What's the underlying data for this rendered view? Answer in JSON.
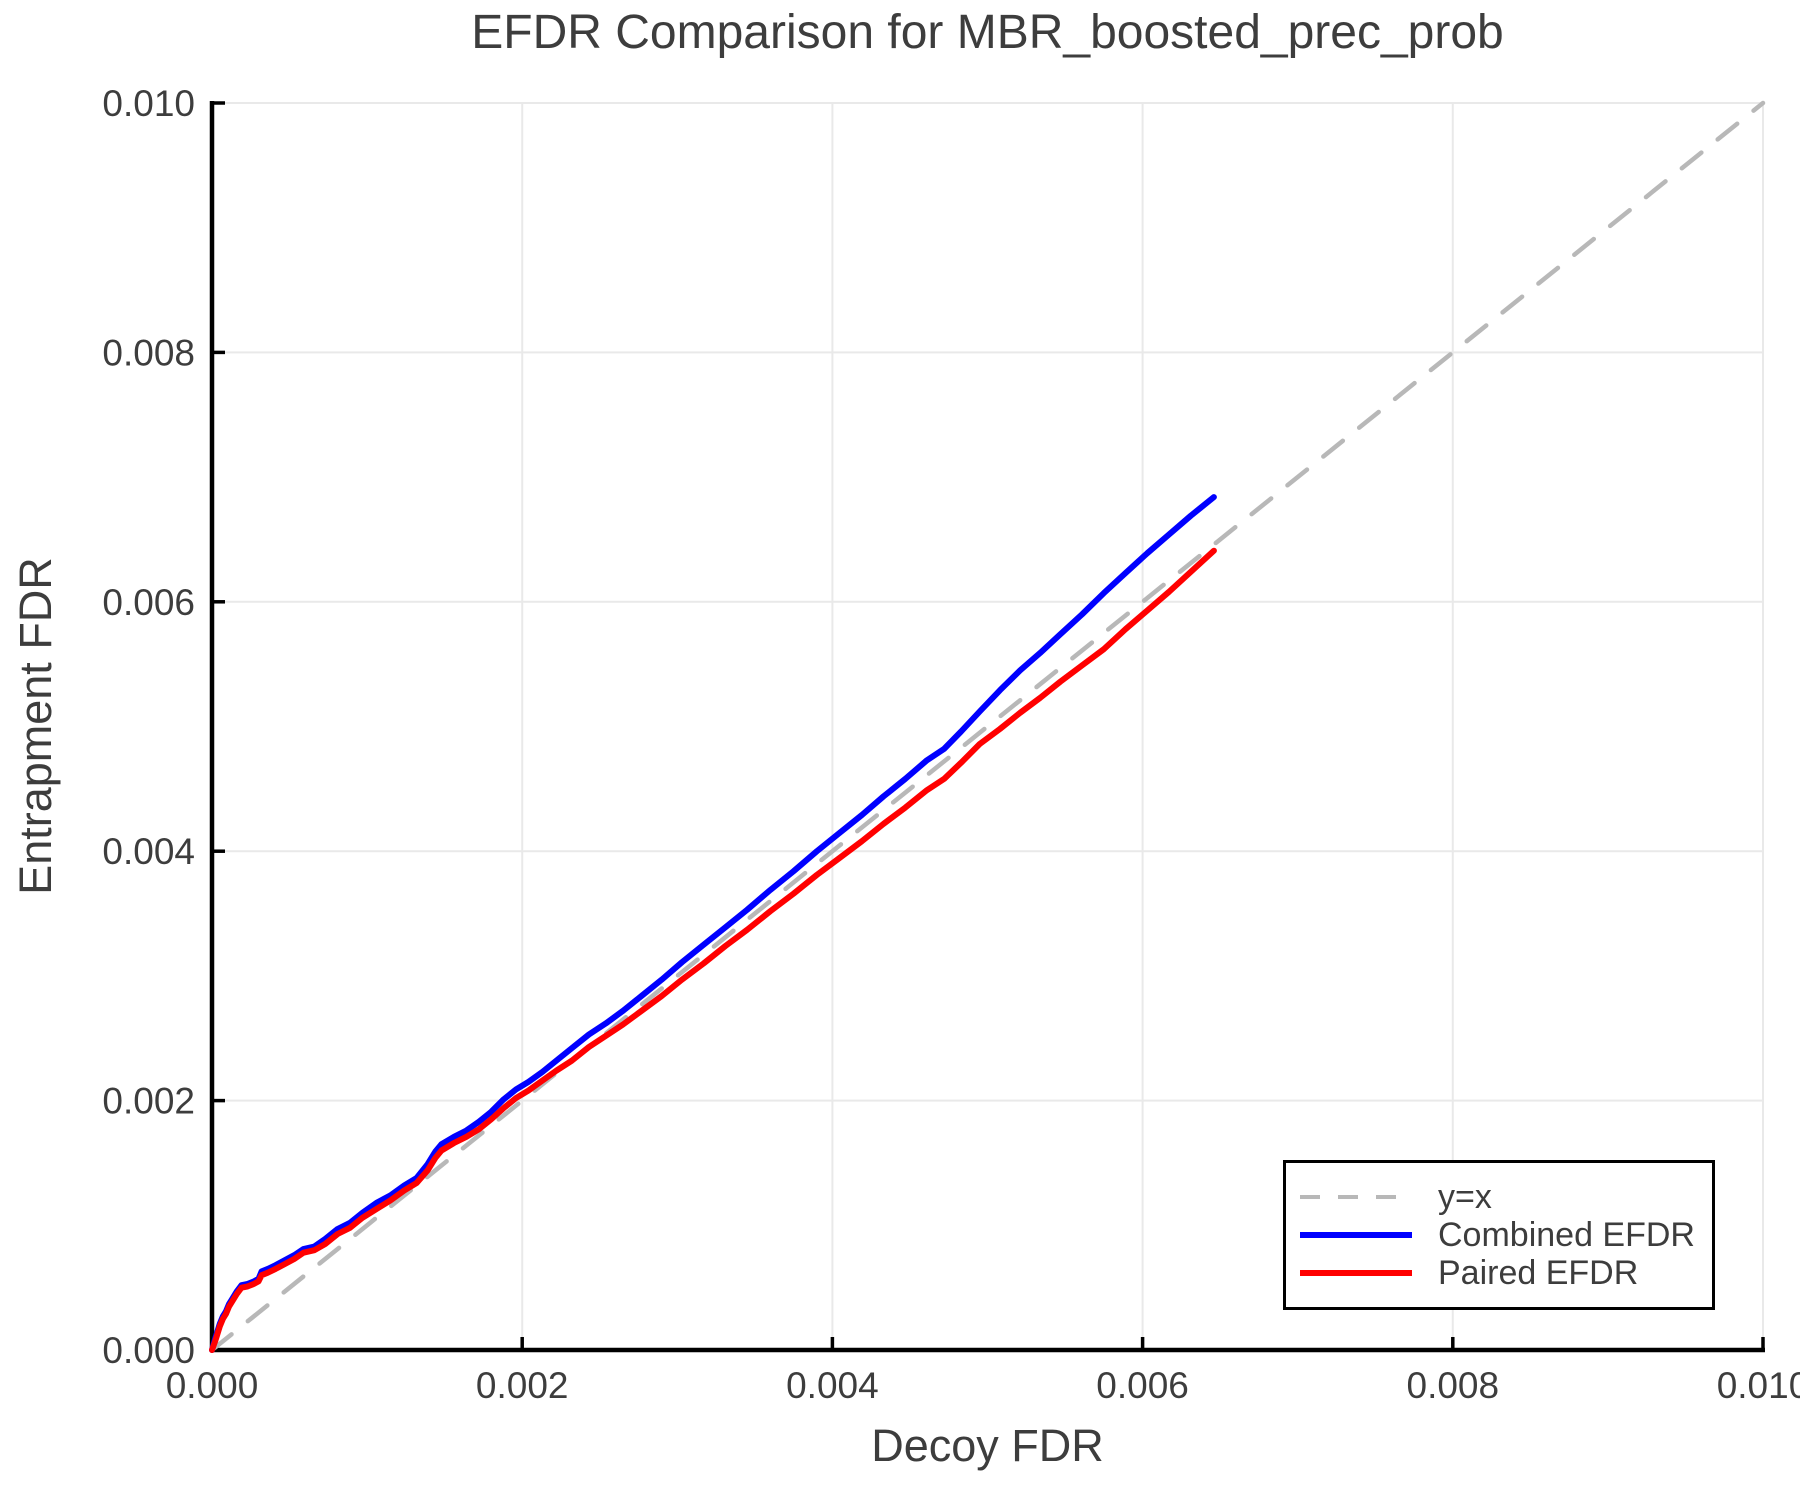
{
  "chart_data": {
    "type": "line",
    "title": "EFDR Comparison for MBR_boosted_prec_prob",
    "xlabel": "Decoy FDR",
    "ylabel": "Entrapment FDR",
    "xlim": [
      0.0,
      0.01
    ],
    "ylim": [
      0.0,
      0.01
    ],
    "xticks": [
      0.0,
      0.002,
      0.004,
      0.006,
      0.008,
      0.01
    ],
    "yticks": [
      0.0,
      0.002,
      0.004,
      0.006,
      0.008,
      0.01
    ],
    "xtick_labels": [
      "0.000",
      "0.002",
      "0.004",
      "0.006",
      "0.008",
      "0.010"
    ],
    "ytick_labels": [
      "0.000",
      "0.002",
      "0.004",
      "0.006",
      "0.008",
      "0.010"
    ],
    "grid": true,
    "grid_color": "#e9e9e9",
    "axis_color": "#000000",
    "text_color": "#3d3d3d",
    "legend_position": "lower right",
    "series": [
      {
        "name": "y=x",
        "style": "dashed",
        "color": "#b8b8b8",
        "points": [
          [
            0.0,
            0.0
          ],
          [
            0.01,
            0.01
          ]
        ]
      },
      {
        "name": "Combined EFDR",
        "style": "solid",
        "color": "#0000ff",
        "points": [
          [
            0.0,
            0.0
          ],
          [
            2e-05,
            9e-05
          ],
          [
            3e-05,
            0.00013
          ],
          [
            5e-05,
            0.00021
          ],
          [
            7e-05,
            0.00027
          ],
          [
            9e-05,
            0.00031
          ],
          [
            0.00011,
            0.00037
          ],
          [
            0.00013,
            0.00041
          ],
          [
            0.00016,
            0.00047
          ],
          [
            0.00019,
            0.00052
          ],
          [
            0.00023,
            0.00053
          ],
          [
            0.00027,
            0.00055
          ],
          [
            0.0003,
            0.00057
          ],
          [
            0.00032,
            0.00063
          ],
          [
            0.00036,
            0.00065
          ],
          [
            0.00041,
            0.00068
          ],
          [
            0.00047,
            0.00072
          ],
          [
            0.00053,
            0.00076
          ],
          [
            0.00059,
            0.00081
          ],
          [
            0.00066,
            0.00083
          ],
          [
            0.00073,
            0.00089
          ],
          [
            0.00081,
            0.00097
          ],
          [
            0.00089,
            0.00102
          ],
          [
            0.00097,
            0.0011
          ],
          [
            0.00106,
            0.00118
          ],
          [
            0.00115,
            0.00124
          ],
          [
            0.00124,
            0.00132
          ],
          [
            0.00132,
            0.00138
          ],
          [
            0.00139,
            0.00149
          ],
          [
            0.00144,
            0.00159
          ],
          [
            0.00148,
            0.00165
          ],
          [
            0.00156,
            0.00171
          ],
          [
            0.00164,
            0.00176
          ],
          [
            0.00172,
            0.00183
          ],
          [
            0.0018,
            0.00191
          ],
          [
            0.00188,
            0.00201
          ],
          [
            0.00196,
            0.00209
          ],
          [
            0.00204,
            0.00215
          ],
          [
            0.00213,
            0.00223
          ],
          [
            0.00222,
            0.00232
          ],
          [
            0.00232,
            0.00242
          ],
          [
            0.00243,
            0.00253
          ],
          [
            0.00254,
            0.00262
          ],
          [
            0.00265,
            0.00272
          ],
          [
            0.00277,
            0.00284
          ],
          [
            0.0029,
            0.00297
          ],
          [
            0.00303,
            0.00311
          ],
          [
            0.00317,
            0.00325
          ],
          [
            0.00331,
            0.00339
          ],
          [
            0.00345,
            0.00353
          ],
          [
            0.0036,
            0.00369
          ],
          [
            0.00375,
            0.00384
          ],
          [
            0.0039,
            0.004
          ],
          [
            0.00404,
            0.00414
          ],
          [
            0.00419,
            0.00429
          ],
          [
            0.00433,
            0.00444
          ],
          [
            0.00447,
            0.00458
          ],
          [
            0.00461,
            0.00473
          ],
          [
            0.00472,
            0.00482
          ],
          [
            0.00483,
            0.00496
          ],
          [
            0.00495,
            0.00512
          ],
          [
            0.00508,
            0.00529
          ],
          [
            0.00521,
            0.00545
          ],
          [
            0.00534,
            0.00559
          ],
          [
            0.00547,
            0.00574
          ],
          [
            0.00561,
            0.0059
          ],
          [
            0.00575,
            0.00607
          ],
          [
            0.00589,
            0.00623
          ],
          [
            0.00603,
            0.00639
          ],
          [
            0.00617,
            0.00654
          ],
          [
            0.00631,
            0.00669
          ],
          [
            0.00646,
            0.00684
          ]
        ]
      },
      {
        "name": "Paired EFDR",
        "style": "solid",
        "color": "#ff0000",
        "points": [
          [
            0.0,
            0.0
          ],
          [
            2e-05,
            7e-05
          ],
          [
            3e-05,
            0.00011
          ],
          [
            5e-05,
            0.00019
          ],
          [
            7e-05,
            0.00025
          ],
          [
            9e-05,
            0.00029
          ],
          [
            0.00011,
            0.00035
          ],
          [
            0.00013,
            0.00039
          ],
          [
            0.00016,
            0.00045
          ],
          [
            0.00019,
            0.0005
          ],
          [
            0.00023,
            0.00051
          ],
          [
            0.00027,
            0.00053
          ],
          [
            0.0003,
            0.00055
          ],
          [
            0.00032,
            0.0006
          ],
          [
            0.00036,
            0.00062
          ],
          [
            0.00041,
            0.00065
          ],
          [
            0.00047,
            0.00069
          ],
          [
            0.00053,
            0.00073
          ],
          [
            0.00059,
            0.00078
          ],
          [
            0.00066,
            0.0008
          ],
          [
            0.00073,
            0.00085
          ],
          [
            0.00081,
            0.00093
          ],
          [
            0.00089,
            0.00098
          ],
          [
            0.00097,
            0.00106
          ],
          [
            0.00106,
            0.00113
          ],
          [
            0.00115,
            0.0012
          ],
          [
            0.00124,
            0.00128
          ],
          [
            0.00132,
            0.00134
          ],
          [
            0.00139,
            0.00144
          ],
          [
            0.00144,
            0.00154
          ],
          [
            0.00148,
            0.0016
          ],
          [
            0.00156,
            0.00166
          ],
          [
            0.00164,
            0.00171
          ],
          [
            0.00172,
            0.00177
          ],
          [
            0.0018,
            0.00185
          ],
          [
            0.00188,
            0.00194
          ],
          [
            0.00196,
            0.00202
          ],
          [
            0.00204,
            0.00208
          ],
          [
            0.00213,
            0.00216
          ],
          [
            0.00222,
            0.00224
          ],
          [
            0.00232,
            0.00232
          ],
          [
            0.00243,
            0.00243
          ],
          [
            0.00254,
            0.00252
          ],
          [
            0.00265,
            0.00261
          ],
          [
            0.00277,
            0.00272
          ],
          [
            0.0029,
            0.00284
          ],
          [
            0.00303,
            0.00297
          ],
          [
            0.00317,
            0.0031
          ],
          [
            0.00331,
            0.00324
          ],
          [
            0.00345,
            0.00337
          ],
          [
            0.0036,
            0.00352
          ],
          [
            0.00375,
            0.00366
          ],
          [
            0.0039,
            0.00381
          ],
          [
            0.00404,
            0.00394
          ],
          [
            0.00419,
            0.00408
          ],
          [
            0.00433,
            0.00422
          ],
          [
            0.00447,
            0.00435
          ],
          [
            0.00461,
            0.00449
          ],
          [
            0.00472,
            0.00458
          ],
          [
            0.00483,
            0.00471
          ],
          [
            0.00495,
            0.00486
          ],
          [
            0.00508,
            0.00498
          ],
          [
            0.00521,
            0.00511
          ],
          [
            0.00534,
            0.00523
          ],
          [
            0.00547,
            0.00536
          ],
          [
            0.00561,
            0.00549
          ],
          [
            0.00575,
            0.00562
          ],
          [
            0.00589,
            0.00578
          ],
          [
            0.00603,
            0.00593
          ],
          [
            0.00617,
            0.00608
          ],
          [
            0.00631,
            0.00624
          ],
          [
            0.00646,
            0.00641
          ]
        ]
      }
    ]
  }
}
